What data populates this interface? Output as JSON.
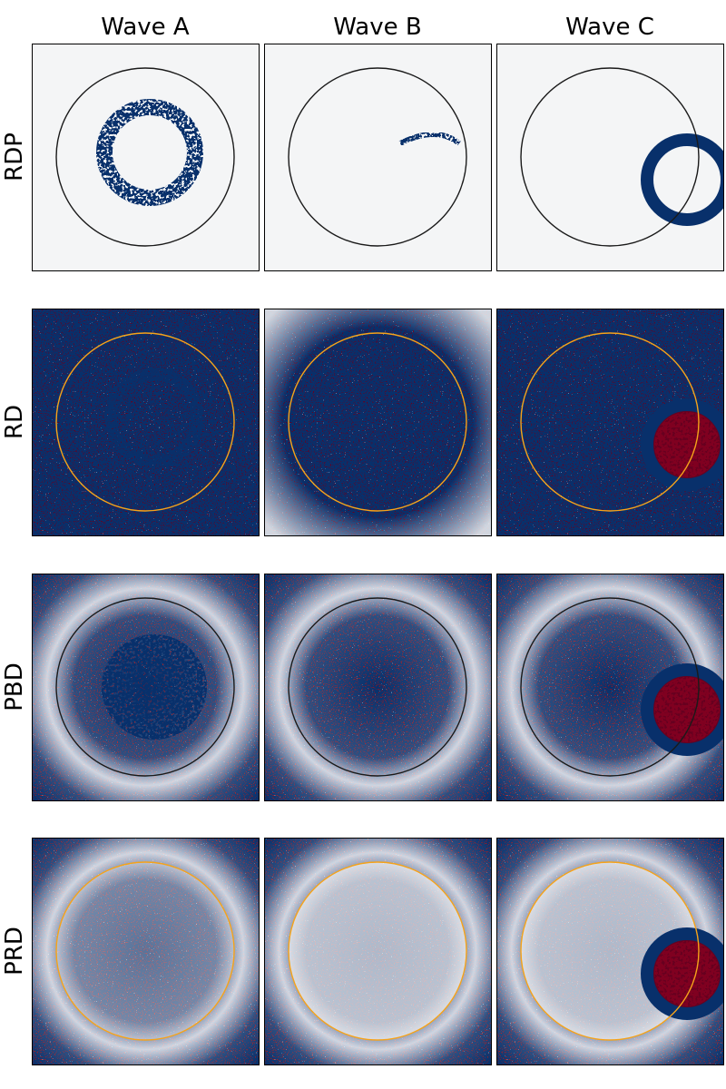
{
  "columns": [
    "Wave A",
    "Wave B",
    "Wave C"
  ],
  "rows": [
    "RDP",
    "RD",
    "PBD",
    "PRD"
  ]
}
